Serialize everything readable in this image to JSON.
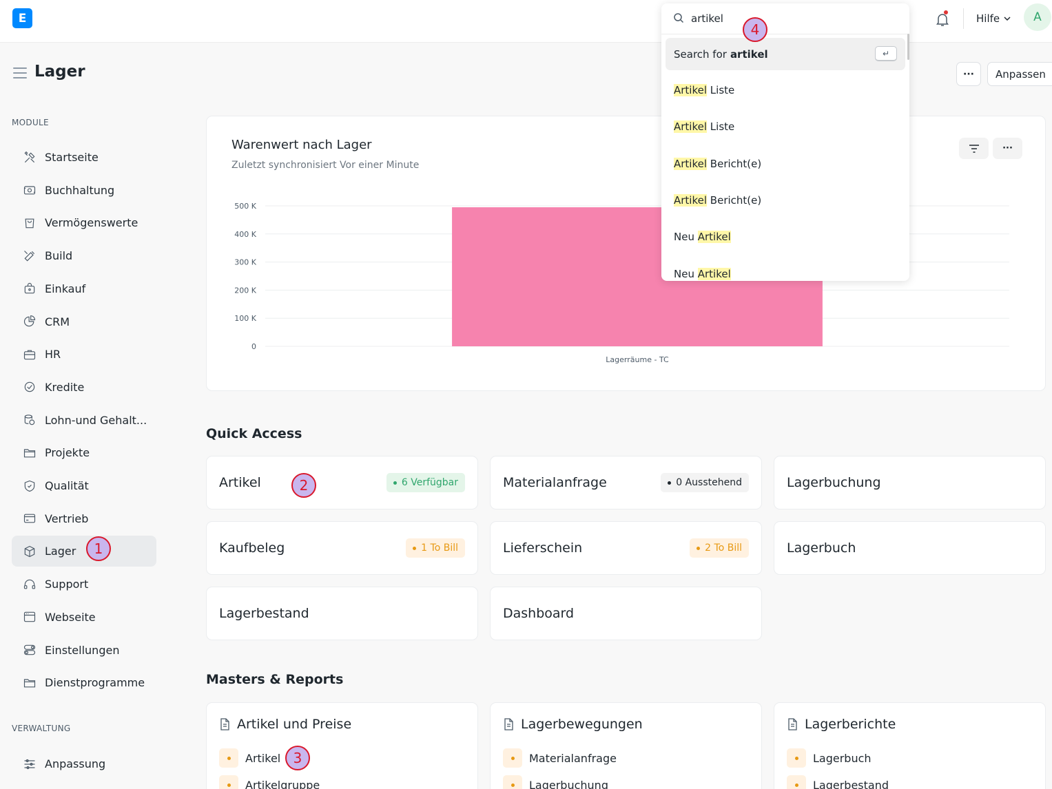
{
  "navbar": {
    "logo_letter": "E",
    "help_label": "Hilfe",
    "avatar_letter": "A"
  },
  "page": {
    "title": "Lager",
    "more_label": "···",
    "customize_label": "Anpassen"
  },
  "sidebar": {
    "module_heading": "MODULE",
    "items": [
      {
        "label": "Startseite",
        "icon": "tools-icon"
      },
      {
        "label": "Buchhaltung",
        "icon": "money-icon"
      },
      {
        "label": "Vermögenswerte",
        "icon": "bag-icon"
      },
      {
        "label": "Build",
        "icon": "wrench-icon"
      },
      {
        "label": "Einkauf",
        "icon": "shopping-icon"
      },
      {
        "label": "CRM",
        "icon": "pie-chart-icon"
      },
      {
        "label": "HR",
        "icon": "briefcase-icon"
      },
      {
        "label": "Kredite",
        "icon": "handshake-icon"
      },
      {
        "label": "Lohn-und Gehalt...",
        "icon": "coins-icon"
      },
      {
        "label": "Projekte",
        "icon": "folder-icon"
      },
      {
        "label": "Qualität",
        "icon": "shield-icon"
      },
      {
        "label": "Vertrieb",
        "icon": "card-icon"
      },
      {
        "label": "Lager",
        "icon": "box-icon",
        "active": true
      },
      {
        "label": "Support",
        "icon": "headset-icon"
      },
      {
        "label": "Webseite",
        "icon": "browser-icon"
      },
      {
        "label": "Einstellungen",
        "icon": "toggle-icon"
      },
      {
        "label": "Dienstprogramme",
        "icon": "folder-icon"
      }
    ],
    "admin_heading": "VERWALTUNG",
    "admin_items": [
      {
        "label": "Anpassung",
        "icon": "sliders-icon"
      }
    ]
  },
  "chart_card": {
    "title": "Warenwert nach Lager",
    "subtitle": "Zuletzt synchronisiert Vor einer Minute",
    "filter_icon": "filter-icon",
    "more_label": "···"
  },
  "chart_data": {
    "type": "bar",
    "categories": [
      "Lagerräume - TC"
    ],
    "values": [
      495000
    ],
    "ylim": [
      0,
      500000
    ],
    "yticks": [
      {
        "value": 0,
        "label": "0"
      },
      {
        "value": 100000,
        "label": "100 K"
      },
      {
        "value": 200000,
        "label": "200 K"
      },
      {
        "value": 300000,
        "label": "300 K"
      },
      {
        "value": 400000,
        "label": "400 K"
      },
      {
        "value": 500000,
        "label": "500 K"
      }
    ],
    "grid": true,
    "color": "#f683ae"
  },
  "search": {
    "query": "artikel",
    "search_for_prefix": "Search for",
    "search_for_term": "artikel",
    "enter_key": "↵",
    "results": [
      {
        "pre": "",
        "hl": "Artikel",
        "post": " Liste"
      },
      {
        "pre": "",
        "hl": "Artikel",
        "post": " Liste"
      },
      {
        "pre": "",
        "hl": "Artikel",
        "post": " Bericht(e)"
      },
      {
        "pre": "",
        "hl": "Artikel",
        "post": " Bericht(e)"
      },
      {
        "pre": "Neu ",
        "hl": "Artikel",
        "post": ""
      },
      {
        "pre": "Neu ",
        "hl": "Artikel",
        "post": ""
      }
    ]
  },
  "quick_access": {
    "title": "Quick Access",
    "cards": [
      {
        "label": "Artikel",
        "badge": "6 Verfügbar",
        "badge_color": "green"
      },
      {
        "label": "Materialanfrage",
        "badge": "0 Ausstehend",
        "badge_color": "gray"
      },
      {
        "label": "Lagerbuchung",
        "badge": null
      },
      {
        "label": "Kaufbeleg",
        "badge": "1 To Bill",
        "badge_color": "orange"
      },
      {
        "label": "Lieferschein",
        "badge": "2 To Bill",
        "badge_color": "orange"
      },
      {
        "label": "Lagerbuch",
        "badge": null
      },
      {
        "label": "Lagerbestand",
        "badge": null
      },
      {
        "label": "Dashboard",
        "badge": null
      }
    ]
  },
  "masters_reports": {
    "title": "Masters & Reports",
    "cards": [
      {
        "title": "Artikel und Preise",
        "links": [
          "Artikel",
          "Artikelgruppe"
        ]
      },
      {
        "title": "Lagerbewegungen",
        "links": [
          "Materialanfrage",
          "Lagerbuchung"
        ]
      },
      {
        "title": "Lagerberichte",
        "links": [
          "Lagerbuch",
          "Lagerbestand"
        ]
      }
    ]
  },
  "markers": [
    "1",
    "2",
    "3",
    "4"
  ]
}
